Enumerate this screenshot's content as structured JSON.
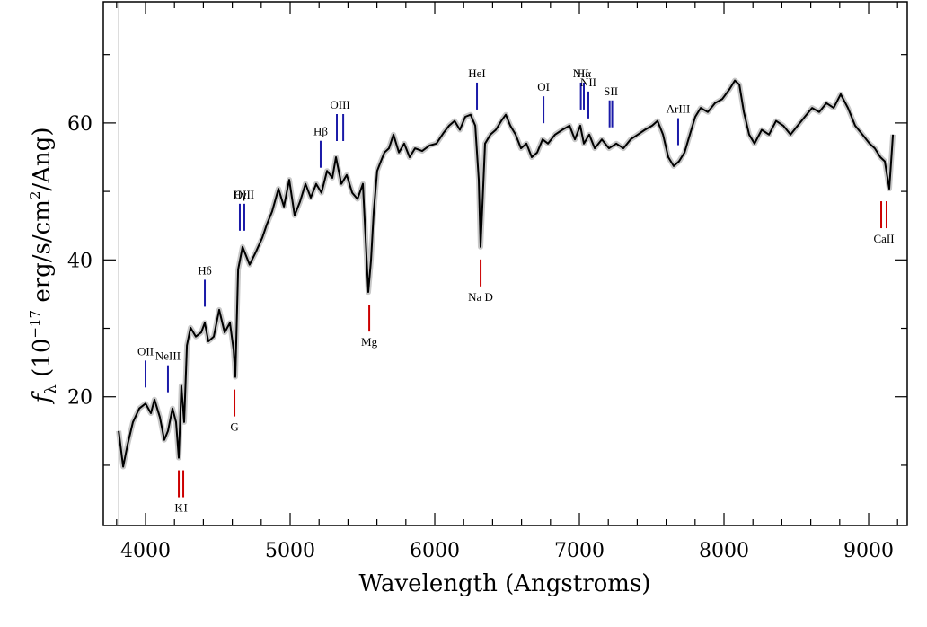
{
  "chart_data": {
    "type": "line",
    "xlabel": "Wavelength (Angstroms)",
    "ylabel_parts": [
      "f",
      "λ",
      " (10",
      "−17",
      " erg/s/cm",
      "2",
      "/Ang)"
    ],
    "xlim": [
      3708,
      9267
    ],
    "ylim": [
      1.2,
      77.7
    ],
    "xticks": [
      4000,
      5000,
      6000,
      7000,
      8000,
      9000
    ],
    "xminor": [
      3800,
      4200,
      4400,
      4600,
      4800,
      5200,
      5400,
      5600,
      5800,
      6200,
      6400,
      6600,
      6800,
      7200,
      7400,
      7600,
      7800,
      8200,
      8400,
      8600,
      8800,
      9200
    ],
    "yticks": [
      20,
      40,
      60
    ],
    "yminor": [
      10,
      30,
      50,
      70
    ],
    "color": "#000000",
    "x": [
      3814,
      3845,
      3876,
      3913,
      3957,
      4000,
      4037,
      4062,
      4099,
      4130,
      4155,
      4186,
      4211,
      4230,
      4248,
      4267,
      4286,
      4311,
      4348,
      4385,
      4410,
      4435,
      4472,
      4509,
      4547,
      4584,
      4609,
      4621,
      4640,
      4671,
      4720,
      4764,
      4807,
      4839,
      4876,
      4919,
      4957,
      4994,
      5031,
      5068,
      5106,
      5143,
      5180,
      5217,
      5255,
      5292,
      5317,
      5354,
      5391,
      5429,
      5466,
      5503,
      5540,
      5559,
      5578,
      5602,
      5627,
      5652,
      5683,
      5714,
      5752,
      5789,
      5826,
      5863,
      5913,
      5963,
      6012,
      6062,
      6099,
      6137,
      6174,
      6211,
      6248,
      6280,
      6304,
      6317,
      6329,
      6348,
      6385,
      6422,
      6460,
      6491,
      6522,
      6559,
      6596,
      6634,
      6671,
      6708,
      6745,
      6783,
      6832,
      6882,
      6932,
      6969,
      7006,
      7031,
      7068,
      7106,
      7155,
      7205,
      7255,
      7304,
      7354,
      7404,
      7453,
      7503,
      7540,
      7578,
      7615,
      7652,
      7689,
      7727,
      7764,
      7801,
      7839,
      7888,
      7938,
      7988,
      8037,
      8075,
      8106,
      8137,
      8174,
      8211,
      8261,
      8311,
      8360,
      8410,
      8460,
      8509,
      8559,
      8609,
      8658,
      8708,
      8758,
      8807,
      8857,
      8907,
      8957,
      9006,
      9043,
      9081,
      9112,
      9143,
      9168
    ],
    "values": [
      15.0,
      9.8,
      13.0,
      16.3,
      18.3,
      19.0,
      17.6,
      19.6,
      17.0,
      13.7,
      15.0,
      18.3,
      16.3,
      11.1,
      21.6,
      16.3,
      27.5,
      30.1,
      28.8,
      29.4,
      30.8,
      28.1,
      28.8,
      32.7,
      29.4,
      30.8,
      26.8,
      22.9,
      38.6,
      41.9,
      39.3,
      41.2,
      43.2,
      45.2,
      47.1,
      50.4,
      47.8,
      51.7,
      46.5,
      48.5,
      51.1,
      49.1,
      51.1,
      49.8,
      53.0,
      52.0,
      55.0,
      51.1,
      52.4,
      49.8,
      48.9,
      51.1,
      35.3,
      39.9,
      47.1,
      53.0,
      54.4,
      55.7,
      56.3,
      58.3,
      55.7,
      57.0,
      55.0,
      56.3,
      55.9,
      56.7,
      57.0,
      58.6,
      59.6,
      60.3,
      59.0,
      60.9,
      61.2,
      59.6,
      51.7,
      41.9,
      47.8,
      57.0,
      58.3,
      59.0,
      60.3,
      61.2,
      59.6,
      58.3,
      56.3,
      57.0,
      55.0,
      55.7,
      57.6,
      57.0,
      58.3,
      59.0,
      59.6,
      57.6,
      59.6,
      57.0,
      58.3,
      56.3,
      57.6,
      56.3,
      57.0,
      56.3,
      57.6,
      58.3,
      59.0,
      59.6,
      60.3,
      58.3,
      55.0,
      53.7,
      54.4,
      55.7,
      58.3,
      60.9,
      62.2,
      61.6,
      62.9,
      63.5,
      64.9,
      66.2,
      65.6,
      61.6,
      58.3,
      57.0,
      59.0,
      58.3,
      60.3,
      59.6,
      58.3,
      59.6,
      60.9,
      62.2,
      61.6,
      62.9,
      62.2,
      64.2,
      62.2,
      59.6,
      58.3,
      57.0,
      56.3,
      55.0,
      54.4,
      50.4,
      58.3
    ],
    "annotations": [
      {
        "label": "OII",
        "x": [
          4000
        ],
        "color": "#1a1aa8",
        "side": "top"
      },
      {
        "label": "NeIII",
        "x": [
          4155
        ],
        "color": "#1a1aa8",
        "side": "top"
      },
      {
        "label": "Hδ",
        "x": [
          4410
        ],
        "color": "#1a1aa8",
        "side": "top"
      },
      {
        "label": "Hγ",
        "x": [
          4652
        ],
        "color": "#1a1aa8",
        "side": "top"
      },
      {
        "label": "OIII",
        "x": [
          4683
        ],
        "color": "#1a1aa8",
        "side": "top"
      },
      {
        "label": "Hβ",
        "x": [
          5211
        ],
        "color": "#1a1aa8",
        "side": "top"
      },
      {
        "label": "OIII",
        "x": [
          5323,
          5367
        ],
        "color": "#1a1aa8",
        "side": "top"
      },
      {
        "label": "HeI",
        "x": [
          6292
        ],
        "color": "#1a1aa8",
        "side": "top"
      },
      {
        "label": "OI",
        "x": [
          6752
        ],
        "color": "#1a1aa8",
        "side": "top"
      },
      {
        "label": "NII",
        "x": [
          7010
        ],
        "color": "#1a1aa8",
        "side": "top"
      },
      {
        "label": "Hα",
        "x": [
          7031
        ],
        "color": "#1a1aa8",
        "side": "top"
      },
      {
        "label": "NII",
        "x": [
          7062
        ],
        "color": "#1a1aa8",
        "side": "top"
      },
      {
        "label": "SII",
        "x": [
          7209,
          7227
        ],
        "color": "#1a1aa8",
        "side": "top"
      },
      {
        "label": "ArIII",
        "x": [
          7683
        ],
        "color": "#1a1aa8",
        "side": "top"
      },
      {
        "label": "K",
        "x": [
          4230
        ],
        "color": "#cc0000",
        "side": "bottom"
      },
      {
        "label": "H",
        "x": [
          4261
        ],
        "color": "#cc0000",
        "side": "bottom"
      },
      {
        "label": "G",
        "x": [
          4615
        ],
        "color": "#cc0000",
        "side": "bottom"
      },
      {
        "label": "Mg",
        "x": [
          5547
        ],
        "color": "#cc0000",
        "side": "bottom"
      },
      {
        "label": "Na D",
        "x": [
          6317
        ],
        "color": "#cc0000",
        "side": "bottom"
      },
      {
        "label": "CaII",
        "x": [
          9087,
          9124
        ],
        "color": "#cc0000",
        "side": "bottom"
      }
    ]
  }
}
